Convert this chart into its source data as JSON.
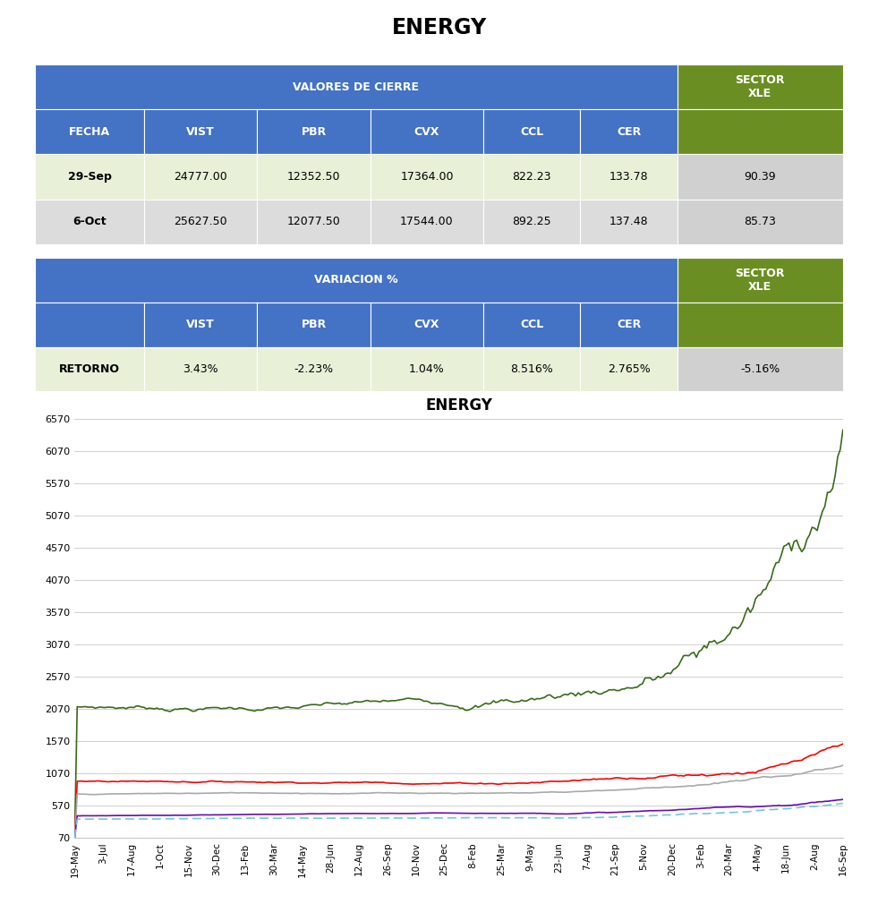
{
  "title": "ENERGY",
  "table1_header_main": "VALORES DE CIERRE",
  "table1_header_sector": "SECTOR\nXLE",
  "table1_cols": [
    "FECHA",
    "VIST",
    "PBR",
    "CVX",
    "CCL",
    "CER"
  ],
  "table1_rows": [
    [
      "29-Sep",
      "24777.00",
      "12352.50",
      "17364.00",
      "822.23",
      "133.78",
      "90.39"
    ],
    [
      "6-Oct",
      "25627.50",
      "12077.50",
      "17544.00",
      "892.25",
      "137.48",
      "85.73"
    ]
  ],
  "table2_header_main": "VARIACION %",
  "table2_header_sector": "SECTOR\nXLE",
  "table2_cols": [
    "",
    "VIST",
    "PBR",
    "CVX",
    "CCL",
    "CER"
  ],
  "table2_rows": [
    [
      "RETORNO",
      "3.43%",
      "-2.23%",
      "1.04%",
      "8.516%",
      "2.765%",
      "-5.16%"
    ]
  ],
  "header_bg": "#4472C4",
  "header_text": "#FFFFFF",
  "sector_bg": "#6B8E23",
  "sector_text": "#FFFFFF",
  "row_bg_even": "#E8F0D8",
  "row_bg_odd": "#DCDCDC",
  "retorno_bg": "#E8F0D8",
  "chart_title": "ENERGY",
  "x_labels": [
    "19-May",
    "3-Jul",
    "17-Aug",
    "1-Oct",
    "15-Nov",
    "30-Dec",
    "13-Feb",
    "30-Mar",
    "14-May",
    "28-Jun",
    "12-Aug",
    "26-Sep",
    "10-Nov",
    "25-Dec",
    "8-Feb",
    "25-Mar",
    "9-May",
    "23-Jun",
    "7-Aug",
    "21-Sep",
    "5-Nov",
    "20-Dec",
    "3-Feb",
    "20-Mar",
    "4-May",
    "18-Jun",
    "2-Aug",
    "16-Sep"
  ],
  "y_ticks": [
    70,
    570,
    1070,
    1570,
    2070,
    2570,
    3070,
    3570,
    4070,
    4570,
    5070,
    5570,
    6070,
    6570
  ],
  "line_colors": {
    "VIST": "#3A6B1A",
    "PBR": "#FF0000",
    "CVX": "#A9A9A9",
    "CCL": "#6A0DAD",
    "CER": "#6EC6E6"
  },
  "n_points": 300
}
